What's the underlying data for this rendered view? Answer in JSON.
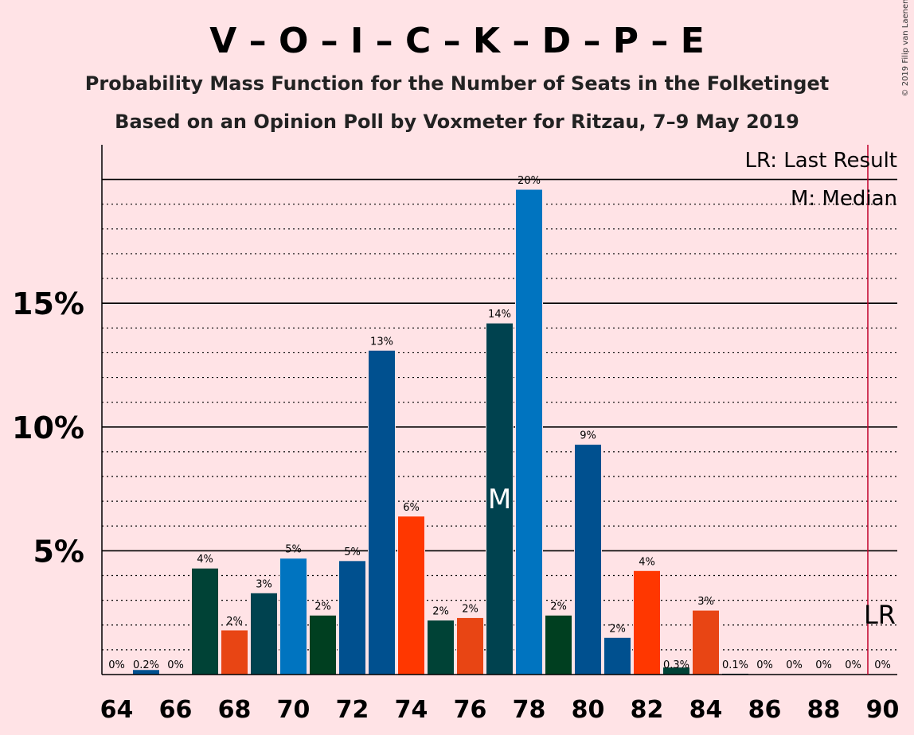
{
  "chart_data": {
    "type": "bar",
    "title": "V – O – I – C – K – D – P – E",
    "subtitle1": "Probability Mass Function for the Number of Seats in the Folketinget",
    "subtitle2": "Based on an Opinion Poll by Voxmeter for Ritzau, 7–9 May 2019",
    "copyright": "© 2019 Filip van Laenen",
    "xlabel": "",
    "ylabel": "",
    "x_range": [
      64,
      90
    ],
    "ylim": [
      0,
      21.4
    ],
    "y_ticks": [
      5,
      10,
      15
    ],
    "y_tick_labels": [
      "5%",
      "10%",
      "15%"
    ],
    "x_tick_labels": [
      "64",
      "66",
      "68",
      "70",
      "72",
      "74",
      "76",
      "78",
      "80",
      "82",
      "84",
      "86",
      "88",
      "90"
    ],
    "grid": true,
    "bars": [
      {
        "seats": 64,
        "value": 0,
        "label": "0%",
        "color": "#FFE3E6"
      },
      {
        "seats": 65,
        "value": 0.2,
        "label": "0.2%",
        "color": "#00508F"
      },
      {
        "seats": 66,
        "value": 0,
        "label": "0%",
        "color": "#FFE3E6"
      },
      {
        "seats": 67,
        "value": 4.3,
        "label": "4%",
        "color": "#004236"
      },
      {
        "seats": 68,
        "value": 1.8,
        "label": "2%",
        "color": "#E84514"
      },
      {
        "seats": 69,
        "value": 3.3,
        "label": "3%",
        "color": "#00424F"
      },
      {
        "seats": 70,
        "value": 4.7,
        "label": "5%",
        "color": "#0074C0"
      },
      {
        "seats": 71,
        "value": 2.4,
        "label": "2%",
        "color": "#003F20"
      },
      {
        "seats": 72,
        "value": 4.6,
        "label": "5%",
        "color": "#00508F"
      },
      {
        "seats": 73,
        "value": 13.1,
        "label": "13%",
        "color": "#00508F"
      },
      {
        "seats": 74,
        "value": 6.4,
        "label": "6%",
        "color": "#FF3700"
      },
      {
        "seats": 75,
        "value": 2.2,
        "label": "2%",
        "color": "#004236"
      },
      {
        "seats": 76,
        "value": 2.3,
        "label": "2%",
        "color": "#E84514"
      },
      {
        "seats": 77,
        "value": 14.2,
        "label": "14%",
        "color": "#00424F"
      },
      {
        "seats": 78,
        "value": 19.6,
        "label": "20%",
        "color": "#0074C0"
      },
      {
        "seats": 79,
        "value": 2.4,
        "label": "2%",
        "color": "#003F20"
      },
      {
        "seats": 80,
        "value": 9.3,
        "label": "9%",
        "color": "#00508F"
      },
      {
        "seats": 81,
        "value": 1.5,
        "label": "2%",
        "color": "#00508F"
      },
      {
        "seats": 82,
        "value": 4.2,
        "label": "4%",
        "color": "#FF3700"
      },
      {
        "seats": 83,
        "value": 0.3,
        "label": "0.3%",
        "color": "#004236"
      },
      {
        "seats": 84,
        "value": 2.6,
        "label": "3%",
        "color": "#E84514"
      },
      {
        "seats": 85,
        "value": 0.05,
        "label": "0.1%",
        "color": "#00424F"
      },
      {
        "seats": 86,
        "value": 0,
        "label": "0%",
        "color": "#FFE3E6"
      },
      {
        "seats": 87,
        "value": 0,
        "label": "0%",
        "color": "#FFE3E6"
      },
      {
        "seats": 88,
        "value": 0,
        "label": "0%",
        "color": "#FFE3E6"
      },
      {
        "seats": 89,
        "value": 0,
        "label": "0%",
        "color": "#FFE3E6"
      },
      {
        "seats": 90,
        "value": 0,
        "label": "0%",
        "color": "#FFE3E6"
      }
    ],
    "median": {
      "seats": 77,
      "label": "M"
    },
    "last_result": {
      "seats": 90,
      "label": "LR",
      "line_color": "#C0002A"
    },
    "legend": {
      "position": "top-right",
      "lr_text": "LR: Last Result",
      "m_text": "M: Median"
    }
  }
}
